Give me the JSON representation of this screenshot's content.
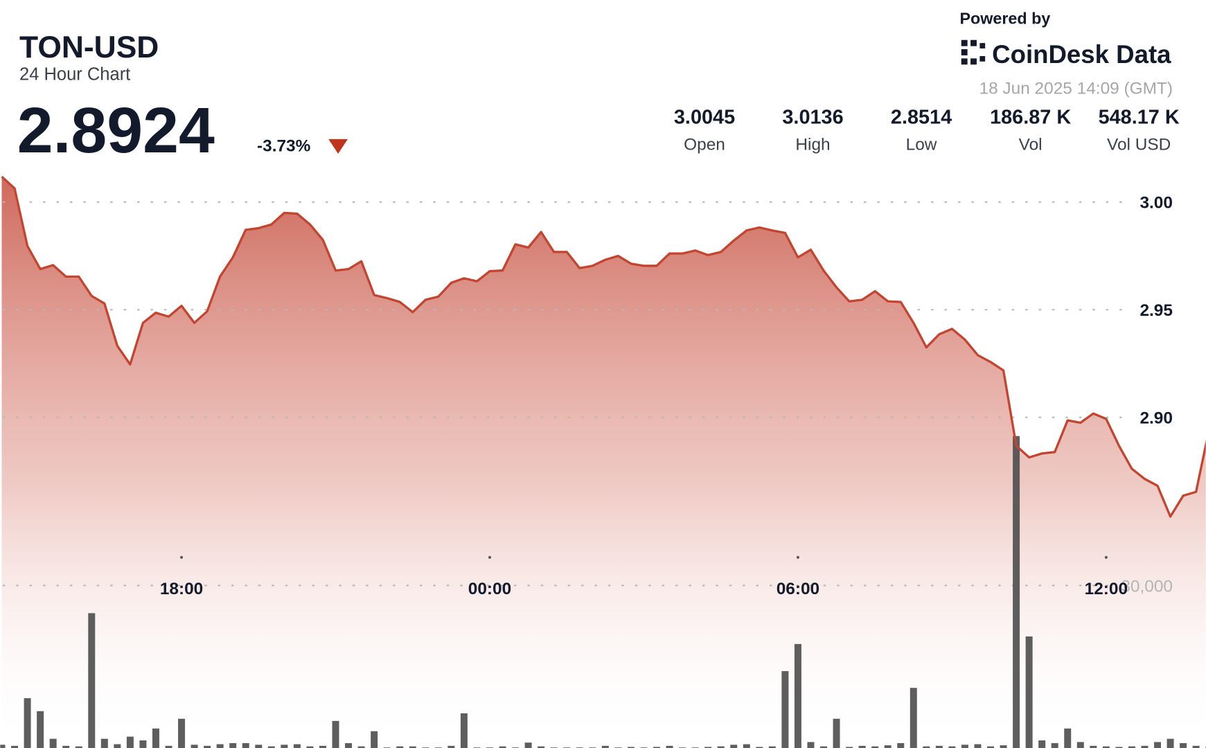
{
  "header": {
    "symbol": "TON-USD",
    "subtitle": "24 Hour Chart",
    "price": "2.8924",
    "change": "-3.73%",
    "powered_by": "Powered by",
    "brand": "CoinDesk Data",
    "timestamp": "18 Jun 2025 14:09 (GMT)"
  },
  "stats": [
    {
      "value": "3.0045",
      "label": "Open"
    },
    {
      "value": "3.0136",
      "label": "High"
    },
    {
      "value": "2.8514",
      "label": "Low"
    },
    {
      "value": "186.87 K",
      "label": "Vol"
    },
    {
      "value": "548.17 K",
      "label": "Vol USD"
    }
  ],
  "chart_data": {
    "type": "line",
    "x": [
      14.5,
      14.75,
      15,
      15.25,
      15.5,
      15.75,
      16,
      16.25,
      16.5,
      16.75,
      17,
      17.25,
      17.5,
      17.75,
      18,
      18.25,
      18.5,
      18.75,
      19,
      19.25,
      19.5,
      19.75,
      20,
      20.25,
      20.5,
      20.75,
      21,
      21.25,
      21.5,
      21.75,
      22,
      22.25,
      22.5,
      22.75,
      23,
      23.25,
      23.5,
      23.75,
      24,
      24.25,
      24.5,
      24.75,
      25,
      25.25,
      25.5,
      25.75,
      26,
      26.25,
      26.5,
      26.75,
      27,
      27.25,
      27.5,
      27.75,
      28,
      28.25,
      28.5,
      28.75,
      29,
      29.25,
      29.5,
      29.75,
      30,
      30.25,
      30.5,
      30.75,
      31,
      31.25,
      31.5,
      31.75,
      32,
      32.25,
      32.5,
      32.75,
      33,
      33.25,
      33.5,
      33.75,
      34,
      34.25,
      34.5,
      34.75,
      35,
      35.25,
      35.5,
      35.75,
      36,
      36.25,
      36.5,
      36.75,
      37,
      37.25,
      37.5,
      37.75,
      38
    ],
    "series": [
      {
        "color": "#c4452f",
        "values": [
          3.0118,
          3.0064,
          2.9796,
          2.9689,
          2.9707,
          2.9654,
          2.9654,
          2.9564,
          2.9529,
          2.9332,
          2.9246,
          2.9439,
          2.9486,
          2.9468,
          2.9518,
          2.9439,
          2.9493,
          2.9654,
          2.9743,
          2.9871,
          2.9879,
          2.9896,
          2.995,
          2.9946,
          2.9896,
          2.9825,
          2.9682,
          2.9689,
          2.9725,
          2.9568,
          2.9554,
          2.9536,
          2.9489,
          2.9546,
          2.9561,
          2.9625,
          2.9646,
          2.9632,
          2.9679,
          2.9682,
          2.9804,
          2.9789,
          2.9861,
          2.9768,
          2.9768,
          2.9693,
          2.9704,
          2.9732,
          2.975,
          2.9714,
          2.9704,
          2.9704,
          2.9761,
          2.9761,
          2.9775,
          2.9754,
          2.9768,
          2.9821,
          2.9868,
          2.9882,
          2.9868,
          2.9857,
          2.9743,
          2.9779,
          2.9682,
          2.9604,
          2.9539,
          2.9546,
          2.9586,
          2.9539,
          2.9536,
          2.9439,
          2.9325,
          2.9386,
          2.9411,
          2.9361,
          2.9289,
          2.9257,
          2.9218,
          2.8868,
          2.8814,
          2.8832,
          2.8839,
          2.8986,
          2.8975,
          2.9018,
          2.8993,
          2.8868,
          2.8761,
          2.8714,
          2.8682,
          2.8539,
          2.8636,
          2.8654,
          2.8939
        ]
      },
      {
        "type": "bar",
        "axis": "y2",
        "color": "#4d4d4d",
        "values": [
          600,
          400,
          9200,
          6800,
          1700,
          400,
          300,
          24900,
          1700,
          700,
          2100,
          1400,
          3600,
          400,
          5400,
          600,
          400,
          700,
          900,
          900,
          600,
          300,
          600,
          700,
          300,
          400,
          5000,
          900,
          300,
          3100,
          100,
          300,
          300,
          100,
          100,
          400,
          6400,
          100,
          100,
          300,
          100,
          1000,
          300,
          100,
          100,
          100,
          100,
          400,
          100,
          200,
          100,
          200,
          400,
          100,
          100,
          200,
          300,
          600,
          700,
          200,
          300,
          14200,
          19200,
          1100,
          300,
          5400,
          200,
          400,
          300,
          500,
          900,
          11100,
          300,
          400,
          300,
          600,
          700,
          300,
          500,
          57600,
          20600,
          1400,
          900,
          3600,
          1100,
          400,
          300,
          200,
          300,
          400,
          1100,
          1700,
          900,
          400,
          300
        ]
      }
    ],
    "xlim": [
      14.47,
      37.94
    ],
    "xticks": [
      {
        "value": 18,
        "label": "18:00"
      },
      {
        "value": 24,
        "label": "00:00"
      },
      {
        "value": 30,
        "label": "06:00"
      },
      {
        "value": 36,
        "label": "12:00"
      }
    ],
    "ylim": [
      2.7464,
      3.0171
    ],
    "yticks": [
      {
        "value": 2.9,
        "label": "2.90"
      },
      2.95,
      {
        "value": 3,
        "label": "3.00"
      }
    ],
    "y2lim": [
      0,
      107600
    ],
    "y2ticks": [
      {
        "value": 30000,
        "label": "30,000"
      }
    ],
    "grid": true
  }
}
